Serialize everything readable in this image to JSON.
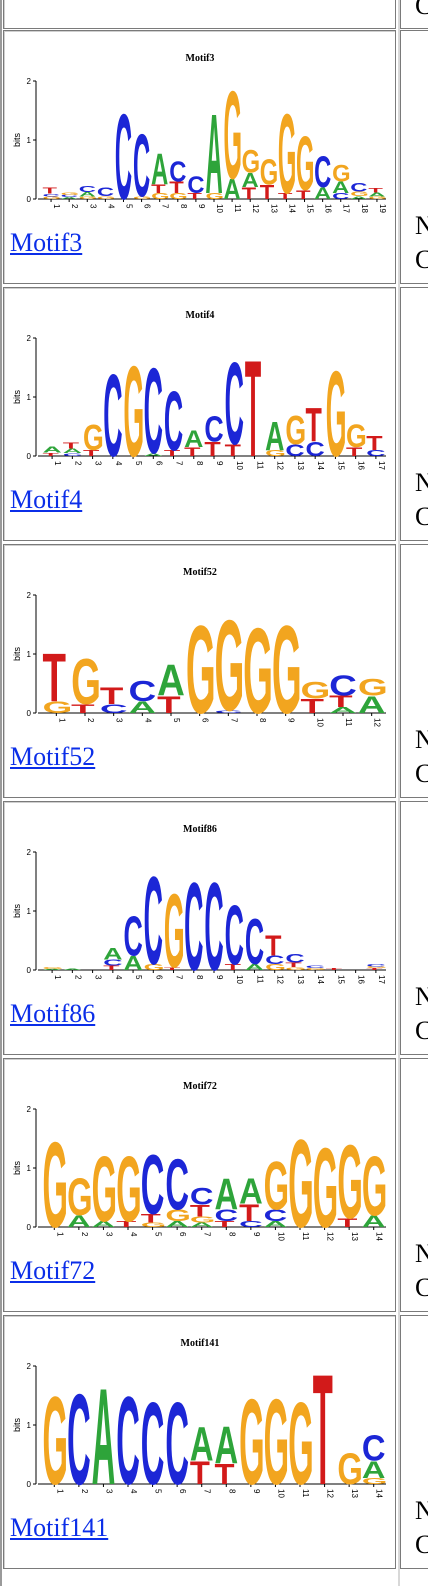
{
  "rows": [
    {
      "title": "Motif3",
      "link": "Motif3",
      "side_top": "N",
      "side_bottom": "C",
      "positions": [
        "1",
        "2",
        "3",
        "4",
        "5",
        "6",
        "7",
        "8",
        "9",
        "10",
        "11",
        "12",
        "13",
        "14",
        "15",
        "16",
        "17",
        "18",
        "19"
      ]
    },
    {
      "title": "Motif4",
      "link": "Motif4",
      "side_top": "N",
      "side_bottom": "C",
      "positions": [
        "1",
        "2",
        "3",
        "4",
        "5",
        "6",
        "7",
        "8",
        "9",
        "10",
        "11",
        "12",
        "13",
        "14",
        "15",
        "16",
        "17"
      ]
    },
    {
      "title": "Motif52",
      "link": "Motif52",
      "side_top": "N",
      "side_bottom": "C",
      "positions": [
        "1",
        "2",
        "3",
        "4",
        "5",
        "6",
        "7",
        "8",
        "9",
        "10",
        "11",
        "12"
      ]
    },
    {
      "title": "Motif86",
      "link": "Motif86",
      "side_top": "N",
      "side_bottom": "C",
      "positions": [
        "1",
        "2",
        "3",
        "4",
        "5",
        "6",
        "7",
        "8",
        "9",
        "10",
        "11",
        "12",
        "13",
        "14",
        "15",
        "16",
        "17"
      ]
    },
    {
      "title": "Motif72",
      "link": "Motif72",
      "side_top": "N",
      "side_bottom": "C",
      "positions": [
        "1",
        "2",
        "3",
        "4",
        "5",
        "6",
        "7",
        "8",
        "9",
        "10",
        "11",
        "12",
        "13",
        "14"
      ]
    },
    {
      "title": "Motif141",
      "link": "Motif141",
      "side_top": "N",
      "side_bottom": "C",
      "positions": [
        "1",
        "2",
        "3",
        "4",
        "5",
        "6",
        "7",
        "8",
        "9",
        "10",
        "11",
        "12",
        "13",
        "14"
      ]
    }
  ],
  "logo_axis": {
    "ylabel": "bits",
    "ticks": [
      "0",
      "1",
      "2"
    ]
  },
  "top_partial": {
    "side_bottom": "C"
  },
  "colors": {
    "A": "#2ea43a",
    "C": "#1c26d6",
    "G": "#f2a51f",
    "T": "#d21a1a",
    "link": "#0b2ee8"
  },
  "logo_letters": [
    [
      [
        [
          "T",
          0.1
        ],
        [
          "C",
          0.05
        ],
        [
          "G",
          0.04
        ]
      ],
      [
        [
          "G",
          0.05
        ],
        [
          "C",
          0.04
        ],
        [
          "A",
          0.03
        ]
      ],
      [
        [
          "C",
          0.1
        ],
        [
          "A",
          0.08
        ],
        [
          "G",
          0.04
        ]
      ],
      [
        [
          "C",
          0.15
        ],
        [
          "G",
          0.05
        ]
      ],
      [
        [
          "C",
          1.5
        ]
      ],
      [
        [
          "C",
          1.1
        ],
        [
          "G",
          0.05
        ]
      ],
      [
        [
          "A",
          0.55
        ],
        [
          "T",
          0.15
        ],
        [
          "G",
          0.1
        ]
      ],
      [
        [
          "C",
          0.35
        ],
        [
          "T",
          0.2
        ],
        [
          "G",
          0.1
        ]
      ],
      [
        [
          "C",
          0.3
        ],
        [
          "T",
          0.1
        ]
      ],
      [
        [
          "A",
          1.4
        ],
        [
          "G",
          0.1
        ]
      ],
      [
        [
          "G",
          1.55
        ],
        [
          "A",
          0.35
        ]
      ],
      [
        [
          "G",
          0.4
        ],
        [
          "A",
          0.25
        ],
        [
          "T",
          0.2
        ]
      ],
      [
        [
          "G",
          0.45
        ],
        [
          "T",
          0.25
        ]
      ],
      [
        [
          "G",
          1.4
        ],
        [
          "T",
          0.1
        ]
      ],
      [
        [
          "G",
          0.95
        ],
        [
          "T",
          0.15
        ]
      ],
      [
        [
          "C",
          0.55
        ],
        [
          "A",
          0.2
        ]
      ],
      [
        [
          "G",
          0.3
        ],
        [
          "A",
          0.2
        ],
        [
          "C",
          0.1
        ]
      ],
      [
        [
          "C",
          0.15
        ],
        [
          "G",
          0.08
        ],
        [
          "A",
          0.05
        ]
      ],
      [
        [
          "T",
          0.08
        ],
        [
          "A",
          0.07
        ],
        [
          "G",
          0.04
        ]
      ]
    ],
    [
      [
        [
          "A",
          0.1
        ],
        [
          "T",
          0.06
        ]
      ],
      [
        [
          "T",
          0.1
        ],
        [
          "A",
          0.08
        ],
        [
          "C",
          0.05
        ]
      ],
      [
        [
          "G",
          0.45
        ],
        [
          "T",
          0.1
        ]
      ],
      [
        [
          "C",
          1.45
        ]
      ],
      [
        [
          "G",
          1.6
        ]
      ],
      [
        [
          "C",
          1.5
        ],
        [
          "A",
          0.05
        ]
      ],
      [
        [
          "C",
          1.05
        ],
        [
          "T",
          0.1
        ]
      ],
      [
        [
          "A",
          0.3
        ],
        [
          "T",
          0.15
        ]
      ],
      [
        [
          "C",
          0.45
        ],
        [
          "T",
          0.25
        ]
      ],
      [
        [
          "C",
          1.45
        ],
        [
          "T",
          0.2
        ]
      ],
      [
        [
          "T",
          1.7
        ]
      ],
      [
        [
          "A",
          0.5
        ],
        [
          "G",
          0.1
        ]
      ],
      [
        [
          "G",
          0.5
        ],
        [
          "C",
          0.2
        ]
      ],
      [
        [
          "T",
          0.6
        ],
        [
          "C",
          0.25
        ]
      ],
      [
        [
          "G",
          1.5
        ]
      ],
      [
        [
          "G",
          0.4
        ],
        [
          "T",
          0.15
        ]
      ],
      [
        [
          "T",
          0.25
        ],
        [
          "C",
          0.1
        ]
      ]
    ],
    [
      [
        [
          "T",
          0.85
        ],
        [
          "G",
          0.2
        ]
      ],
      [
        [
          "G",
          0.8
        ],
        [
          "T",
          0.15
        ]
      ],
      [
        [
          "T",
          0.3
        ],
        [
          "C",
          0.15
        ]
      ],
      [
        [
          "C",
          0.35
        ],
        [
          "A",
          0.2
        ]
      ],
      [
        [
          "A",
          0.55
        ],
        [
          "T",
          0.3
        ]
      ],
      [
        [
          "G",
          1.55
        ]
      ],
      [
        [
          "G",
          1.6
        ],
        [
          "C",
          0.05
        ]
      ],
      [
        [
          "G",
          1.5
        ]
      ],
      [
        [
          "G",
          1.55
        ]
      ],
      [
        [
          "G",
          0.3
        ],
        [
          "T",
          0.25
        ]
      ],
      [
        [
          "C",
          0.35
        ],
        [
          "T",
          0.2
        ],
        [
          "A",
          0.1
        ]
      ],
      [
        [
          "G",
          0.3
        ],
        [
          "A",
          0.3
        ]
      ]
    ],
    [
      [
        [
          "G",
          0.03
        ],
        [
          "A",
          0.02
        ]
      ],
      [
        [
          "A",
          0.02
        ]
      ],
      [],
      [
        [
          "A",
          0.2
        ],
        [
          "C",
          0.1
        ],
        [
          "T",
          0.08
        ]
      ],
      [
        [
          "C",
          0.7
        ],
        [
          "A",
          0.25
        ]
      ],
      [
        [
          "C",
          1.55
        ],
        [
          "G",
          0.1
        ]
      ],
      [
        [
          "G",
          1.3
        ],
        [
          "T",
          0.05
        ]
      ],
      [
        [
          "C",
          1.55
        ]
      ],
      [
        [
          "C",
          1.55
        ]
      ],
      [
        [
          "C",
          1.05
        ],
        [
          "T",
          0.1
        ]
      ],
      [
        [
          "C",
          0.8
        ],
        [
          "A",
          0.1
        ]
      ],
      [
        [
          "T",
          0.35
        ],
        [
          "C",
          0.15
        ],
        [
          "G",
          0.1
        ]
      ],
      [
        [
          "C",
          0.15
        ],
        [
          "T",
          0.08
        ],
        [
          "G",
          0.05
        ]
      ],
      [
        [
          "C",
          0.05
        ],
        [
          "G",
          0.03
        ]
      ],
      [
        [
          "T",
          0.03
        ]
      ],
      [],
      [
        [
          "C",
          0.05
        ],
        [
          "G",
          0.03
        ],
        [
          "T",
          0.03
        ]
      ]
    ],
    [
      [
        [
          "G",
          1.5
        ]
      ],
      [
        [
          "G",
          0.65
        ],
        [
          "A",
          0.2
        ]
      ],
      [
        [
          "G",
          1.15
        ],
        [
          "A",
          0.1
        ]
      ],
      [
        [
          "G",
          1.15
        ],
        [
          "T",
          0.1
        ]
      ],
      [
        [
          "C",
          1.05
        ],
        [
          "T",
          0.15
        ],
        [
          "G",
          0.08
        ]
      ],
      [
        [
          "C",
          0.9
        ],
        [
          "G",
          0.2
        ],
        [
          "A",
          0.1
        ]
      ],
      [
        [
          "C",
          0.3
        ],
        [
          "T",
          0.2
        ],
        [
          "G",
          0.1
        ],
        [
          "A",
          0.08
        ]
      ],
      [
        [
          "A",
          0.55
        ],
        [
          "C",
          0.2
        ],
        [
          "T",
          0.1
        ]
      ],
      [
        [
          "A",
          0.45
        ],
        [
          "T",
          0.3
        ],
        [
          "C",
          0.1
        ]
      ],
      [
        [
          "G",
          0.85
        ],
        [
          "C",
          0.2
        ],
        [
          "A",
          0.1
        ]
      ],
      [
        [
          "G",
          1.55
        ]
      ],
      [
        [
          "G",
          1.4
        ]
      ],
      [
        [
          "G",
          1.3
        ],
        [
          "T",
          0.15
        ]
      ],
      [
        [
          "G",
          1.05
        ],
        [
          "A",
          0.2
        ]
      ]
    ],
    [
      [
        [
          "G",
          1.55
        ]
      ],
      [
        [
          "C",
          1.6
        ]
      ],
      [
        [
          "A",
          1.7
        ]
      ],
      [
        [
          "C",
          1.55
        ]
      ],
      [
        [
          "C",
          1.45
        ]
      ],
      [
        [
          "C",
          1.45
        ]
      ],
      [
        [
          "A",
          0.6
        ],
        [
          "T",
          0.4
        ]
      ],
      [
        [
          "A",
          0.65
        ],
        [
          "T",
          0.35
        ]
      ],
      [
        [
          "G",
          1.5
        ]
      ],
      [
        [
          "G",
          1.5
        ]
      ],
      [
        [
          "G",
          1.45
        ]
      ],
      [
        [
          "T",
          1.95
        ]
      ],
      [
        [
          "G",
          0.55
        ]
      ],
      [
        [
          "C",
          0.45
        ],
        [
          "A",
          0.3
        ],
        [
          "G",
          0.1
        ]
      ]
    ]
  ]
}
